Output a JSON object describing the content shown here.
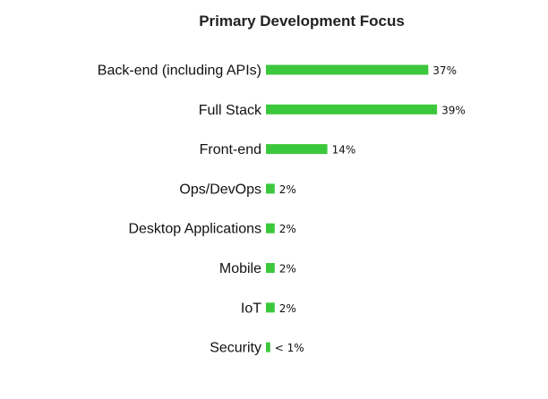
{
  "chart_data": {
    "type": "bar",
    "orientation": "horizontal",
    "title": "Primary Development Focus",
    "categories": [
      "Back-end (including APIs)",
      "Full Stack",
      "Front-end",
      "Ops/DevOps",
      "Desktop Applications",
      "Mobile",
      "IoT",
      "Security"
    ],
    "values": [
      37,
      39,
      14,
      2,
      2,
      2,
      2,
      0.5
    ],
    "value_labels": [
      "37%",
      "39%",
      "14%",
      "2%",
      "2%",
      "2%",
      "2%",
      "< 1%"
    ],
    "xlim": [
      0,
      40
    ],
    "grid": false,
    "legend": "none",
    "bar_color": "#3cc83c"
  }
}
